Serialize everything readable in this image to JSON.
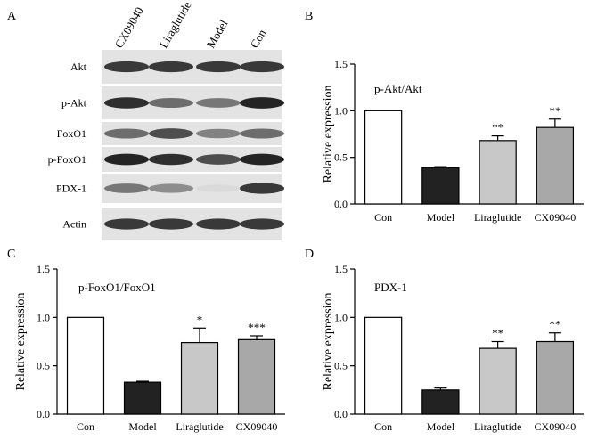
{
  "blot": {
    "panel_label": "A",
    "lanes": [
      "CX09040",
      "Liraglutide",
      "Model",
      "Con"
    ],
    "rows": [
      "Akt",
      "p-Akt",
      "FoxO1",
      "p-FoxO1",
      "PDX-1",
      "Actin"
    ]
  },
  "chart_data": [
    {
      "panel": "B",
      "type": "bar",
      "title": "p-Akt/Akt",
      "categories": [
        "Con",
        "Model",
        "Liraglutide",
        "CX09040"
      ],
      "values": [
        1.0,
        0.39,
        0.68,
        0.82
      ],
      "errors": [
        0.0,
        0.01,
        0.05,
        0.09
      ],
      "significance": [
        "",
        "",
        "**",
        "**"
      ],
      "bar_colors": [
        "#ffffff",
        "#222222",
        "#c8c8c8",
        "#a8a8a8"
      ],
      "xlabel": "",
      "ylabel": "Relative expression",
      "ylim": [
        0,
        1.5
      ],
      "yticks": [
        "0.0",
        "0.5",
        "1.0",
        "1.5"
      ],
      "grid": false
    },
    {
      "panel": "C",
      "type": "bar",
      "title": "p-FoxO1/FoxO1",
      "categories": [
        "Con",
        "Model",
        "Liraglutide",
        "CX09040"
      ],
      "values": [
        1.0,
        0.33,
        0.74,
        0.77
      ],
      "errors": [
        0.0,
        0.01,
        0.15,
        0.04
      ],
      "significance": [
        "",
        "",
        "*",
        "***"
      ],
      "bar_colors": [
        "#ffffff",
        "#222222",
        "#c8c8c8",
        "#a8a8a8"
      ],
      "xlabel": "",
      "ylabel": "Relative expression",
      "ylim": [
        0,
        1.5
      ],
      "yticks": [
        "0.0",
        "0.5",
        "1.0",
        "1.5"
      ],
      "grid": false
    },
    {
      "panel": "D",
      "type": "bar",
      "title": "PDX-1",
      "categories": [
        "Con",
        "Model",
        "Liraglutide",
        "CX09040"
      ],
      "values": [
        1.0,
        0.25,
        0.68,
        0.75
      ],
      "errors": [
        0.0,
        0.02,
        0.07,
        0.09
      ],
      "significance": [
        "",
        "",
        "**",
        "**"
      ],
      "bar_colors": [
        "#ffffff",
        "#222222",
        "#c8c8c8",
        "#a8a8a8"
      ],
      "xlabel": "",
      "ylabel": "Relative expression",
      "ylim": [
        0,
        1.5
      ],
      "yticks": [
        "0.0",
        "0.5",
        "1.0",
        "1.5"
      ],
      "grid": false
    }
  ]
}
